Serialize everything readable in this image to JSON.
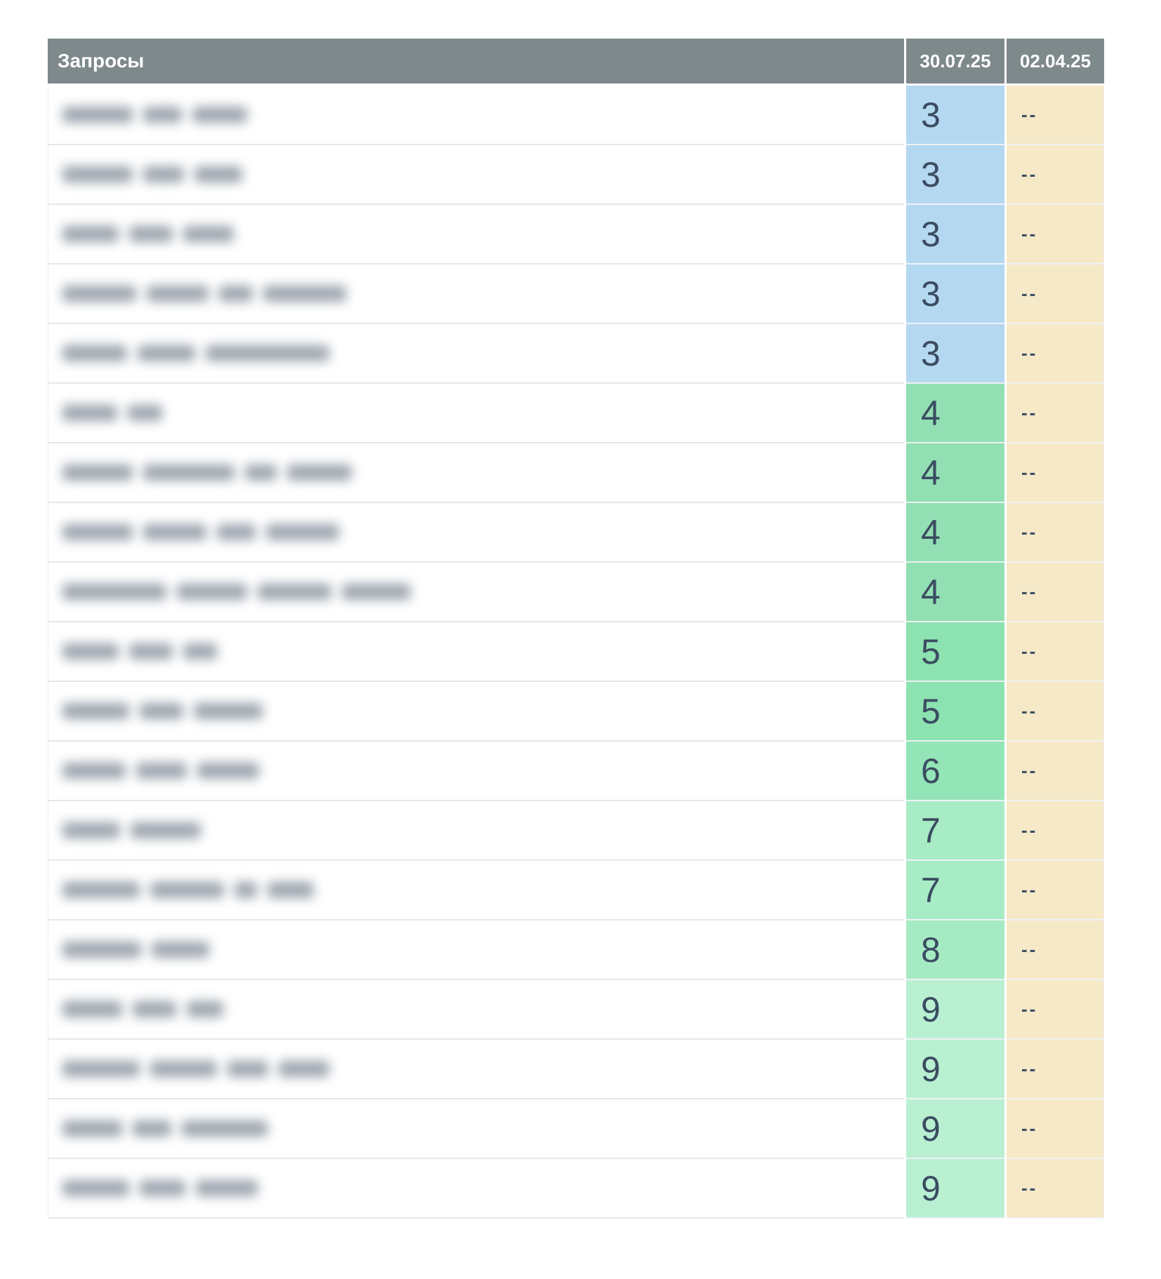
{
  "table": {
    "header": {
      "query_label": "Запросы",
      "date_current": "30.07.25",
      "date_previous": "02.04.25",
      "bg_color": "#7e898c",
      "text_color": "#ffffff"
    },
    "colors": {
      "position_text": "#3b4c61",
      "previous_cell_bg": "#f6e9c8",
      "row_border": "#e5e8eb",
      "position_colors": {
        "blue": "#b4d8f0",
        "green4": "#92dfb3",
        "green5": "#8ce2b0",
        "green6": "#93e5b7",
        "green7": "#a8ecc6",
        "green8": "#a6eac3",
        "green9": "#b9f0d2"
      }
    },
    "rows": [
      {
        "query_blur_widths": [
          100,
          55,
          78
        ],
        "current": "3",
        "previous": "--",
        "color": "blue"
      },
      {
        "query_blur_widths": [
          100,
          58,
          68
        ],
        "current": "3",
        "previous": "--",
        "color": "blue"
      },
      {
        "query_blur_widths": [
          80,
          62,
          72
        ],
        "current": "3",
        "previous": "--",
        "color": "blue"
      },
      {
        "query_blur_widths": [
          105,
          88,
          48,
          118
        ],
        "current": "3",
        "previous": "--",
        "color": "blue"
      },
      {
        "query_blur_widths": [
          92,
          82,
          176
        ],
        "current": "3",
        "previous": "--",
        "color": "blue"
      },
      {
        "query_blur_widths": [
          78,
          49
        ],
        "current": "4",
        "previous": "--",
        "color": "green4"
      },
      {
        "query_blur_widths": [
          100,
          130,
          45,
          92
        ],
        "current": "4",
        "previous": "--",
        "color": "green4"
      },
      {
        "query_blur_widths": [
          100,
          90,
          55,
          104
        ],
        "current": "4",
        "previous": "--",
        "color": "green4"
      },
      {
        "query_blur_widths": [
          148,
          100,
          105,
          98
        ],
        "current": "4",
        "previous": "--",
        "color": "green4"
      },
      {
        "query_blur_widths": [
          80,
          62,
          48
        ],
        "current": "5",
        "previous": "--",
        "color": "green5"
      },
      {
        "query_blur_widths": [
          95,
          62,
          98
        ],
        "current": "5",
        "previous": "--",
        "color": "green5"
      },
      {
        "query_blur_widths": [
          90,
          72,
          88
        ],
        "current": "6",
        "previous": "--",
        "color": "green6"
      },
      {
        "query_blur_widths": [
          82,
          100
        ],
        "current": "7",
        "previous": "--",
        "color": "green7"
      },
      {
        "query_blur_widths": [
          110,
          105,
          32,
          66
        ],
        "current": "7",
        "previous": "--",
        "color": "green7"
      },
      {
        "query_blur_widths": [
          112,
          82
        ],
        "current": "8",
        "previous": "--",
        "color": "green8"
      },
      {
        "query_blur_widths": [
          85,
          62,
          52
        ],
        "current": "9",
        "previous": "--",
        "color": "green9"
      },
      {
        "query_blur_widths": [
          110,
          95,
          58,
          72
        ],
        "current": "9",
        "previous": "--",
        "color": "green9"
      },
      {
        "query_blur_widths": [
          85,
          55,
          122
        ],
        "current": "9",
        "previous": "--",
        "color": "green9"
      },
      {
        "query_blur_widths": [
          95,
          65,
          88
        ],
        "current": "9",
        "previous": "--",
        "color": "green9"
      }
    ]
  }
}
